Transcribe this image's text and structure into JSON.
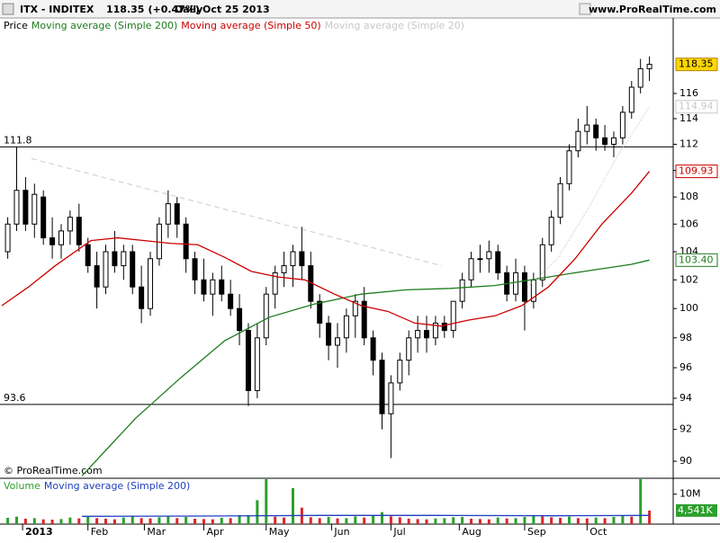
{
  "header": {
    "symbol": "ITX - INDITEX",
    "change": "(+0.47%)",
    "period": "Daily",
    "date": "Oct 25 2013",
    "site": "www.ProRealTime.com"
  },
  "chart_data": [
    {
      "type": "candlestick",
      "watermark": "© ProRealTime.com",
      "log": true,
      "ylim": [
        89.06,
        122.2
      ],
      "xlim": [
        -7.6,
        219
      ],
      "yticks": [
        90,
        92,
        94,
        96,
        98,
        100,
        102,
        104,
        106,
        108,
        110,
        112,
        114,
        116
      ],
      "hlines": [
        111.8,
        93.6
      ],
      "trendline": {
        "x": [
          3,
          141
        ],
        "values": [
          110.9,
          103.0
        ]
      },
      "candles": {
        "name": "Price",
        "label_color": "#ffd700",
        "up_color": "#ffffff",
        "down_color": "#000000",
        "x": [
          -5,
          -2,
          1,
          4,
          7,
          10,
          13,
          16,
          19,
          22,
          25,
          28,
          31,
          34,
          37,
          40,
          43,
          46,
          49,
          52,
          55,
          58,
          61,
          64,
          67,
          70,
          73,
          76,
          79,
          82,
          85,
          88,
          91,
          94,
          97,
          100,
          103,
          106,
          109,
          112,
          115,
          118,
          121,
          124,
          127,
          130,
          133,
          136,
          139,
          142,
          145,
          148,
          151,
          154,
          157,
          160,
          163,
          166,
          169,
          172,
          175,
          178,
          181,
          184,
          187,
          190,
          193,
          196,
          199,
          202,
          205,
          208,
          211
        ],
        "open": [
          104,
          106,
          108.5,
          106,
          108,
          105,
          104.5,
          105.5,
          106.5,
          104.5,
          103,
          101.5,
          104,
          103,
          104,
          101.5,
          100,
          103.5,
          106,
          107.5,
          106,
          103.5,
          102,
          101,
          102,
          101,
          100,
          98.5,
          94.5,
          98,
          101,
          102.5,
          103,
          104,
          103,
          100.5,
          99,
          97.5,
          98,
          99.5,
          100.5,
          98,
          96.5,
          93,
          95,
          96.5,
          98,
          98.5,
          98,
          99,
          98.5,
          100.5,
          102,
          103.5,
          103.5,
          104,
          102.5,
          101,
          102.5,
          100.5,
          102,
          104.5,
          106.5,
          109,
          111.5,
          113,
          113.5,
          112.5,
          112,
          112.5,
          114.5,
          116.5,
          118
        ],
        "high": [
          106.5,
          111.8,
          109.5,
          109,
          108.5,
          106.5,
          106,
          107,
          107.5,
          105,
          104,
          104.5,
          105.5,
          104.5,
          104.5,
          103,
          104,
          106.5,
          108.5,
          108,
          106.5,
          104,
          103.5,
          102.5,
          103,
          102,
          101,
          99,
          99,
          101.5,
          103,
          104,
          104.5,
          105.8,
          104,
          101,
          99.5,
          99,
          100,
          101,
          101.5,
          98.5,
          97,
          95.5,
          97,
          98.5,
          99.5,
          99.5,
          99.5,
          99.5,
          100.5,
          102.5,
          104,
          104.5,
          104.8,
          104.5,
          103,
          103.5,
          103,
          102.5,
          105,
          107,
          109.5,
          112,
          114,
          115,
          114,
          113.5,
          113,
          115,
          117,
          118.8,
          119
        ],
        "low": [
          103.5,
          105.5,
          105.5,
          105,
          104.5,
          103.5,
          103.5,
          104.5,
          104,
          102.5,
          100,
          101,
          102.5,
          102,
          101,
          99,
          99.5,
          103,
          105,
          105,
          102.5,
          101,
          100.5,
          99.5,
          100.5,
          99.5,
          97.5,
          93.5,
          94,
          97.5,
          100,
          101.5,
          101.5,
          102,
          100,
          98,
          96.5,
          96,
          97,
          98,
          97.5,
          95.5,
          92,
          90.2,
          94.5,
          95.5,
          97,
          97,
          97.5,
          98,
          98,
          100,
          101.5,
          102.5,
          102.5,
          102,
          100.5,
          100.5,
          98.5,
          100,
          101.5,
          104,
          106,
          108.5,
          111,
          112,
          111.5,
          111.5,
          111,
          112,
          114,
          116,
          117
        ],
        "close": [
          106,
          108.5,
          106,
          108.2,
          105,
          104.5,
          105.5,
          106.5,
          104.5,
          103,
          101.5,
          104,
          103,
          104,
          101.5,
          100,
          103.5,
          106,
          107.5,
          106,
          103.5,
          102,
          101,
          102,
          101,
          100,
          98.5,
          94.5,
          98,
          101,
          102.5,
          103,
          104,
          103,
          100.5,
          99,
          97.5,
          98,
          99.5,
          100.5,
          98,
          96.5,
          93,
          95,
          96.5,
          98,
          98.5,
          98,
          99,
          98.5,
          100.5,
          102,
          103.5,
          103.5,
          104,
          102.5,
          101,
          102.5,
          100.5,
          102,
          104.5,
          106.5,
          109,
          111.5,
          113,
          113.5,
          112.5,
          112,
          112.5,
          114.5,
          116.5,
          118,
          118.35
        ]
      },
      "series": [
        {
          "name": "Moving average (Simple 200)",
          "color": "#1e7b1e",
          "x": [
            20,
            38,
            53,
            68,
            83,
            98,
            114,
            129,
            144,
            159,
            174,
            189,
            205,
            211
          ],
          "values": [
            89.1,
            92.7,
            95.3,
            97.8,
            99.4,
            100.3,
            101,
            101.3,
            101.4,
            101.6,
            102.1,
            102.6,
            103.1,
            103.4
          ],
          "value_labels": [
            null,
            null,
            null,
            null,
            null,
            null,
            null,
            null,
            null,
            null,
            null,
            null,
            null,
            "103.40"
          ]
        },
        {
          "name": "Moving average (Simple 50)",
          "color": "#cc0000",
          "x": [
            -7,
            2,
            11,
            23,
            32,
            41,
            50,
            59,
            68,
            77,
            86,
            95,
            105,
            114,
            123,
            132,
            141,
            150,
            159,
            168,
            177,
            186,
            195,
            205,
            211
          ],
          "values": [
            100.2,
            101.5,
            103,
            104.8,
            105,
            104.8,
            104.6,
            104.5,
            103.6,
            102.6,
            102.2,
            102,
            101,
            100.2,
            99.8,
            99,
            98.8,
            99.2,
            99.5,
            100.2,
            101.5,
            103.5,
            106,
            108.3,
            109.93
          ]
        },
        {
          "name": "Moving average (Simple 20)",
          "color": "#c8c8c8",
          "dotted": true,
          "x": [
            170,
            180,
            190,
            200,
            211
          ],
          "values": [
            101.5,
            103.5,
            107,
            111,
            114.94
          ]
        }
      ]
    },
    {
      "type": "volume",
      "ylim": [
        0,
        15
      ],
      "xlim": [
        -7.6,
        219
      ],
      "name": "Volume",
      "up_color": "#2ca02c",
      "down_color": "#d62728",
      "yticks": [
        {
          "value": 10,
          "label": "10M"
        }
      ],
      "xticks": [
        {
          "value": 0,
          "label": "2013"
        },
        {
          "value": 22,
          "label": "Feb"
        },
        {
          "value": 41,
          "label": "Mar"
        },
        {
          "value": 61,
          "label": "Apr"
        },
        {
          "value": 82,
          "label": "May"
        },
        {
          "value": 104,
          "label": "Jun"
        },
        {
          "value": 124,
          "label": "Jul"
        },
        {
          "value": 147,
          "label": "Aug"
        },
        {
          "value": 169,
          "label": "Sep"
        },
        {
          "value": 190,
          "label": "Oct"
        }
      ],
      "x": [
        -5,
        -2,
        1,
        4,
        7,
        10,
        13,
        16,
        19,
        22,
        25,
        28,
        31,
        34,
        37,
        40,
        43,
        46,
        49,
        52,
        55,
        58,
        61,
        64,
        67,
        70,
        73,
        76,
        79,
        82,
        85,
        88,
        91,
        94,
        97,
        100,
        103,
        106,
        109,
        112,
        115,
        118,
        121,
        124,
        127,
        130,
        133,
        136,
        139,
        142,
        145,
        148,
        151,
        154,
        157,
        160,
        163,
        166,
        169,
        172,
        175,
        178,
        181,
        184,
        187,
        190,
        193,
        196,
        199,
        202,
        205,
        208,
        211
      ],
      "values": [
        2.1,
        2.5,
        1.8,
        2.0,
        1.6,
        1.5,
        1.7,
        2.2,
        1.9,
        2.4,
        2.0,
        1.8,
        1.6,
        2.2,
        2.8,
        2.0,
        1.9,
        2.3,
        2.6,
        2.0,
        2.4,
        1.8,
        1.7,
        1.6,
        2.1,
        2.0,
        3.0,
        3.0,
        8.0,
        15.0,
        2.5,
        2.2,
        12.0,
        5.5,
        2.3,
        2.0,
        2.4,
        1.9,
        2.0,
        2.6,
        2.2,
        2.8,
        4.0,
        2.6,
        2.3,
        1.8,
        1.7,
        1.6,
        1.9,
        2.0,
        2.3,
        2.4,
        1.8,
        1.7,
        1.6,
        2.2,
        1.9,
        2.0,
        2.4,
        2.8,
        2.6,
        2.3,
        2.1,
        2.5,
        2.0,
        1.9,
        2.2,
        2.0,
        2.4,
        2.7,
        2.5,
        15.0,
        4.541
      ],
      "last_label": "4,541K",
      "label_color": "#2ca02c",
      "series": [
        {
          "name": "Moving average (Simple 200)",
          "color": "#1f3fbf",
          "x": [
            20,
            60,
            100,
            140,
            180,
            211
          ],
          "values": [
            2.6,
            2.7,
            2.9,
            2.9,
            2.8,
            2.9
          ]
        }
      ]
    }
  ]
}
